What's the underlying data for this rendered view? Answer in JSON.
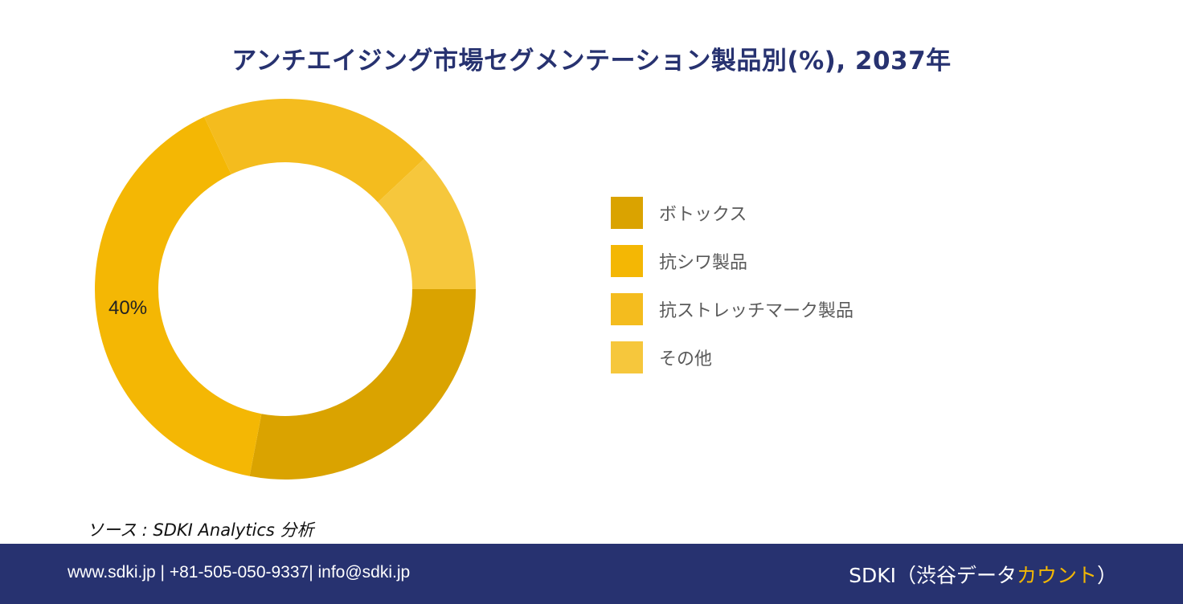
{
  "chart_data": {
    "type": "donut",
    "title": "アンチエイジング市場セグメンテーション製品別(%), 2037年",
    "series": [
      {
        "name": "ボトックス",
        "value": 28,
        "color": "#DAA300"
      },
      {
        "name": "抗シワ製品",
        "value": 40,
        "color": "#F4B704",
        "data_label": "40%"
      },
      {
        "name": "抗ストレッチマーク製品",
        "value": 20,
        "color": "#F4BC1E"
      },
      {
        "name": "その他",
        "value": 12,
        "color": "#F6C73C"
      }
    ],
    "legend_placement": "right"
  },
  "source": "ソース : SDKI Analytics 分析",
  "footer": {
    "contact": "www.sdki.jp | +81-505-050-9337| info@sdki.jp",
    "brand_prefix": "SDKI（渋谷データ",
    "brand_accent": "カウント",
    "brand_suffix": "）",
    "background_color": "#273270"
  }
}
